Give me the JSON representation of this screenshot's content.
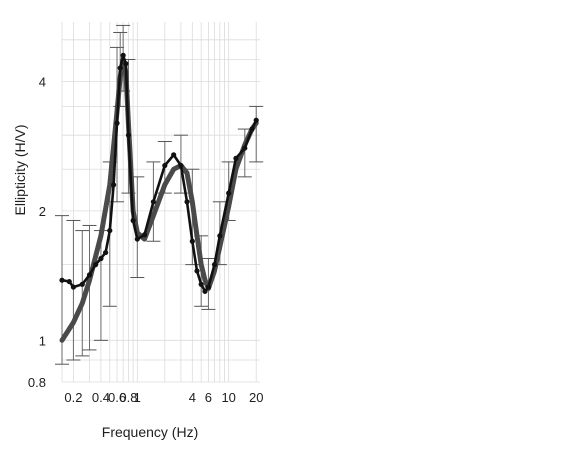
{
  "chart_data": {
    "type": "line",
    "title": "",
    "xlabel": "Frequency (Hz)",
    "ylabel": "Ellipticity (H/V)",
    "x_scale": "log",
    "y_scale": "log",
    "xlim": [
      0.15,
      22
    ],
    "ylim": [
      0.8,
      5.5
    ],
    "grid": true,
    "x_ticks": [
      {
        "value": 0.2,
        "label": "0.2"
      },
      {
        "value": 0.4,
        "label": "0.4"
      },
      {
        "value": 0.6,
        "label": "0.6"
      },
      {
        "value": 0.8,
        "label": "0.8"
      },
      {
        "value": 1,
        "label": "1"
      },
      {
        "value": 4,
        "label": "4"
      },
      {
        "value": 6,
        "label": "6"
      },
      {
        "value": 10,
        "label": "10"
      },
      {
        "value": 20,
        "label": "20"
      }
    ],
    "y_ticks": [
      {
        "value": 0.8,
        "label": "0.8"
      },
      {
        "value": 1,
        "label": "1"
      },
      {
        "value": 2,
        "label": "2"
      },
      {
        "value": 4,
        "label": "4"
      }
    ],
    "series": [
      {
        "style": "thick-gray-line",
        "color": "#4a4a4a",
        "x": [
          0.15,
          0.2,
          0.25,
          0.3,
          0.4,
          0.5,
          0.6,
          0.65,
          0.7,
          0.75,
          0.8,
          0.9,
          1.0,
          1.2,
          1.5,
          2.0,
          2.5,
          3.0,
          3.5,
          4.0,
          4.5,
          5.0,
          5.5,
          6.0,
          7.0,
          8.0,
          10.0,
          12.0,
          15.0,
          18.0,
          20.0
        ],
        "y": [
          1.0,
          1.1,
          1.22,
          1.38,
          1.75,
          2.3,
          3.4,
          4.1,
          4.5,
          4.2,
          3.2,
          2.0,
          1.78,
          1.72,
          1.95,
          2.3,
          2.5,
          2.55,
          2.45,
          2.1,
          1.75,
          1.5,
          1.38,
          1.32,
          1.45,
          1.65,
          2.05,
          2.5,
          2.85,
          3.1,
          3.2
        ]
      },
      {
        "style": "black-line-with-markers",
        "color": "#111111",
        "x": [
          0.15,
          0.18,
          0.2,
          0.25,
          0.3,
          0.35,
          0.4,
          0.45,
          0.5,
          0.55,
          0.6,
          0.65,
          0.7,
          0.75,
          0.8,
          0.9,
          1.0,
          1.2,
          1.5,
          2.0,
          2.5,
          3.0,
          3.5,
          4.0,
          4.5,
          5.0,
          5.5,
          6.0,
          7.0,
          8.0,
          10.0,
          12.0,
          15.0,
          18.0,
          20.0
        ],
        "y": [
          1.38,
          1.37,
          1.33,
          1.35,
          1.42,
          1.5,
          1.55,
          1.6,
          1.8,
          2.3,
          3.2,
          4.3,
          4.6,
          4.4,
          3.0,
          1.9,
          1.72,
          1.76,
          2.1,
          2.55,
          2.7,
          2.55,
          2.1,
          1.7,
          1.45,
          1.35,
          1.3,
          1.33,
          1.5,
          1.75,
          2.2,
          2.65,
          2.8,
          3.1,
          3.25
        ]
      }
    ],
    "error_bars": {
      "x": [
        0.15,
        0.2,
        0.25,
        0.3,
        0.4,
        0.5,
        0.6,
        0.65,
        0.7,
        0.8,
        1.0,
        1.5,
        2.0,
        3.0,
        4.0,
        5.0,
        6.0,
        8.0,
        10.0,
        15.0,
        20.0
      ],
      "low": [
        0.88,
        0.9,
        0.92,
        0.95,
        1.0,
        1.2,
        2.1,
        3.5,
        3.8,
        2.2,
        1.4,
        1.7,
        2.2,
        2.2,
        1.5,
        1.2,
        1.18,
        1.5,
        1.9,
        2.4,
        2.6
      ],
      "high": [
        1.95,
        1.9,
        1.8,
        1.85,
        1.8,
        2.6,
        4.8,
        5.2,
        5.4,
        4.5,
        2.4,
        2.6,
        2.9,
        3.0,
        2.5,
        1.75,
        1.55,
        2.1,
        2.6,
        3.1,
        3.5
      ]
    }
  }
}
